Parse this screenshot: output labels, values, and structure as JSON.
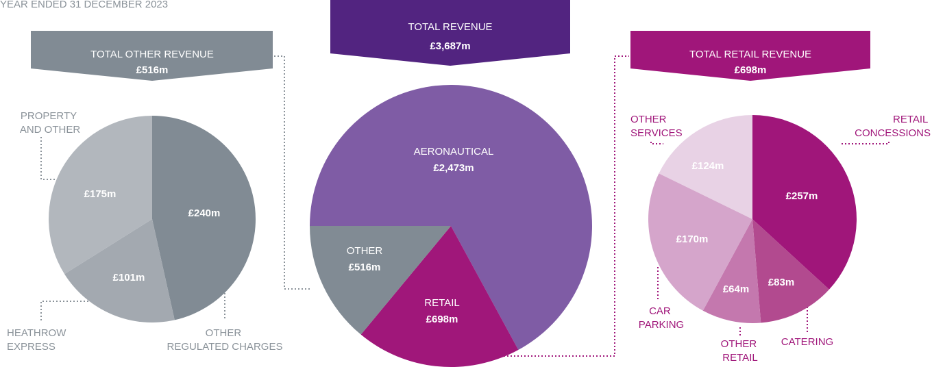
{
  "caption": "YEAR ENDED 31 DECEMBER 2023",
  "chart_data": [
    {
      "type": "pie",
      "title": "TOTAL OTHER REVENUE",
      "subtitle": "£516m",
      "categories": [
        "OTHER REGULATED CHARGES",
        "HEATHROW EXPRESS",
        "PROPERTY AND OTHER"
      ],
      "values": [
        240,
        101,
        175
      ],
      "value_labels": [
        "£240m",
        "£101m",
        "£175m"
      ],
      "colors": [
        "#818b94",
        "#a3a9b0",
        "#b2b7bd"
      ]
    },
    {
      "type": "pie",
      "title": "TOTAL REVENUE",
      "subtitle": "£3,687m",
      "categories": [
        "AERONAUTICAL",
        "RETAIL",
        "OTHER"
      ],
      "values": [
        2473,
        698,
        516
      ],
      "value_labels": [
        "£2,473m",
        "£698m",
        "£516m"
      ],
      "colors": [
        "#7f5ca5",
        "#a0177a",
        "#818b94"
      ]
    },
    {
      "type": "pie",
      "title": "TOTAL RETAIL REVENUE",
      "subtitle": "£698m",
      "categories": [
        "RETAIL CONCESSIONS",
        "CATERING",
        "OTHER RETAIL",
        "CAR PARKING",
        "OTHER SERVICES"
      ],
      "values": [
        257,
        83,
        64,
        170,
        124
      ],
      "value_labels": [
        "£257m",
        "£83m",
        "£64m",
        "£170m",
        "£124m"
      ],
      "colors": [
        "#a0167a",
        "#b24a8f",
        "#c478ae",
        "#d5a5cb",
        "#e8d2e5"
      ]
    }
  ]
}
